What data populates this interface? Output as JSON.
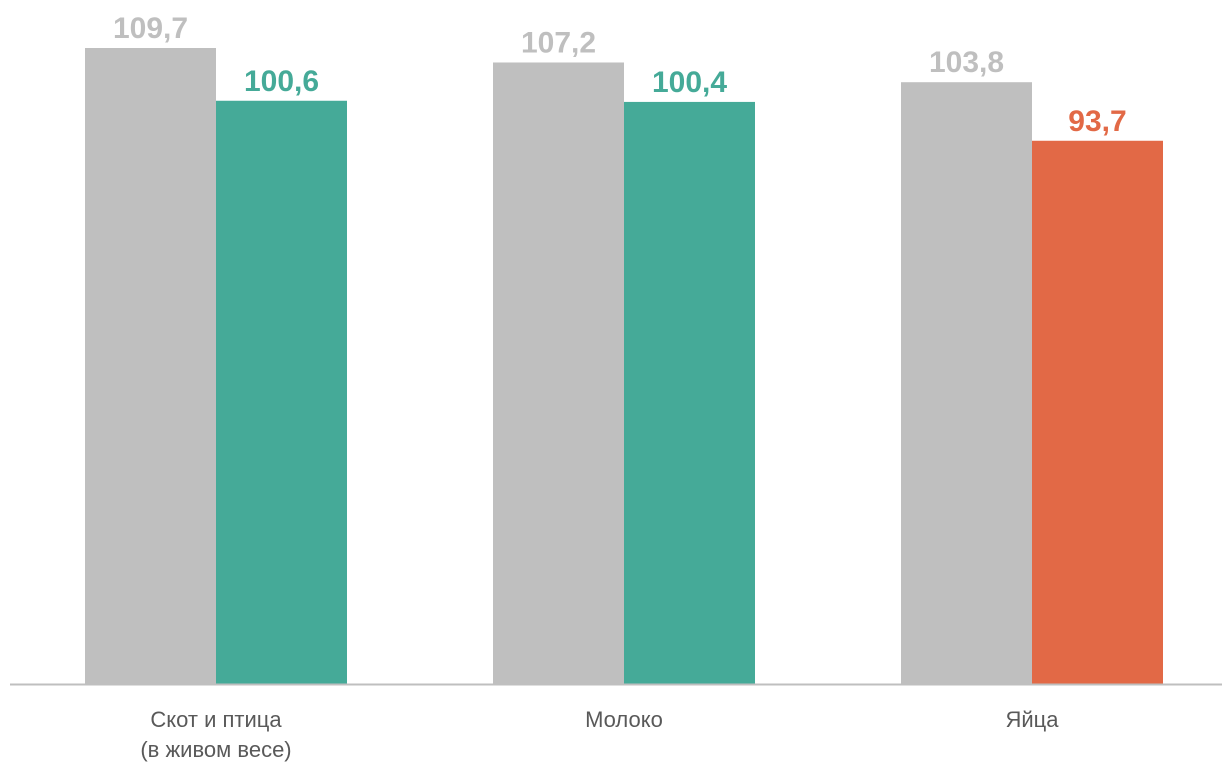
{
  "chart_data": {
    "type": "bar",
    "title": "",
    "xlabel": "",
    "ylabel": "",
    "categories": [
      [
        "Скот и птица",
        "(в живом весе)"
      ],
      [
        "Молоко"
      ],
      [
        "Яйца"
      ]
    ],
    "series": [
      {
        "values": [
          109.7,
          107.2,
          103.8
        ],
        "labels": [
          "109,7",
          "107,2",
          "103,8"
        ],
        "colors": [
          "#bfbfbf",
          "#bfbfbf",
          "#bfbfbf"
        ]
      },
      {
        "values": [
          100.6,
          100.4,
          93.7
        ],
        "labels": [
          "100,6",
          "100,4",
          "93,7"
        ],
        "colors": [
          "#45aa98",
          "#45aa98",
          "#e26946"
        ]
      }
    ],
    "ylim": [
      0,
      109.7
    ],
    "grid": false,
    "legend": "none",
    "colors": {
      "axis": "#bfbfbf",
      "category_text": "#595959",
      "label_gray": "#bfbfbf",
      "label_green": "#45aa98",
      "label_red": "#e26946"
    }
  }
}
